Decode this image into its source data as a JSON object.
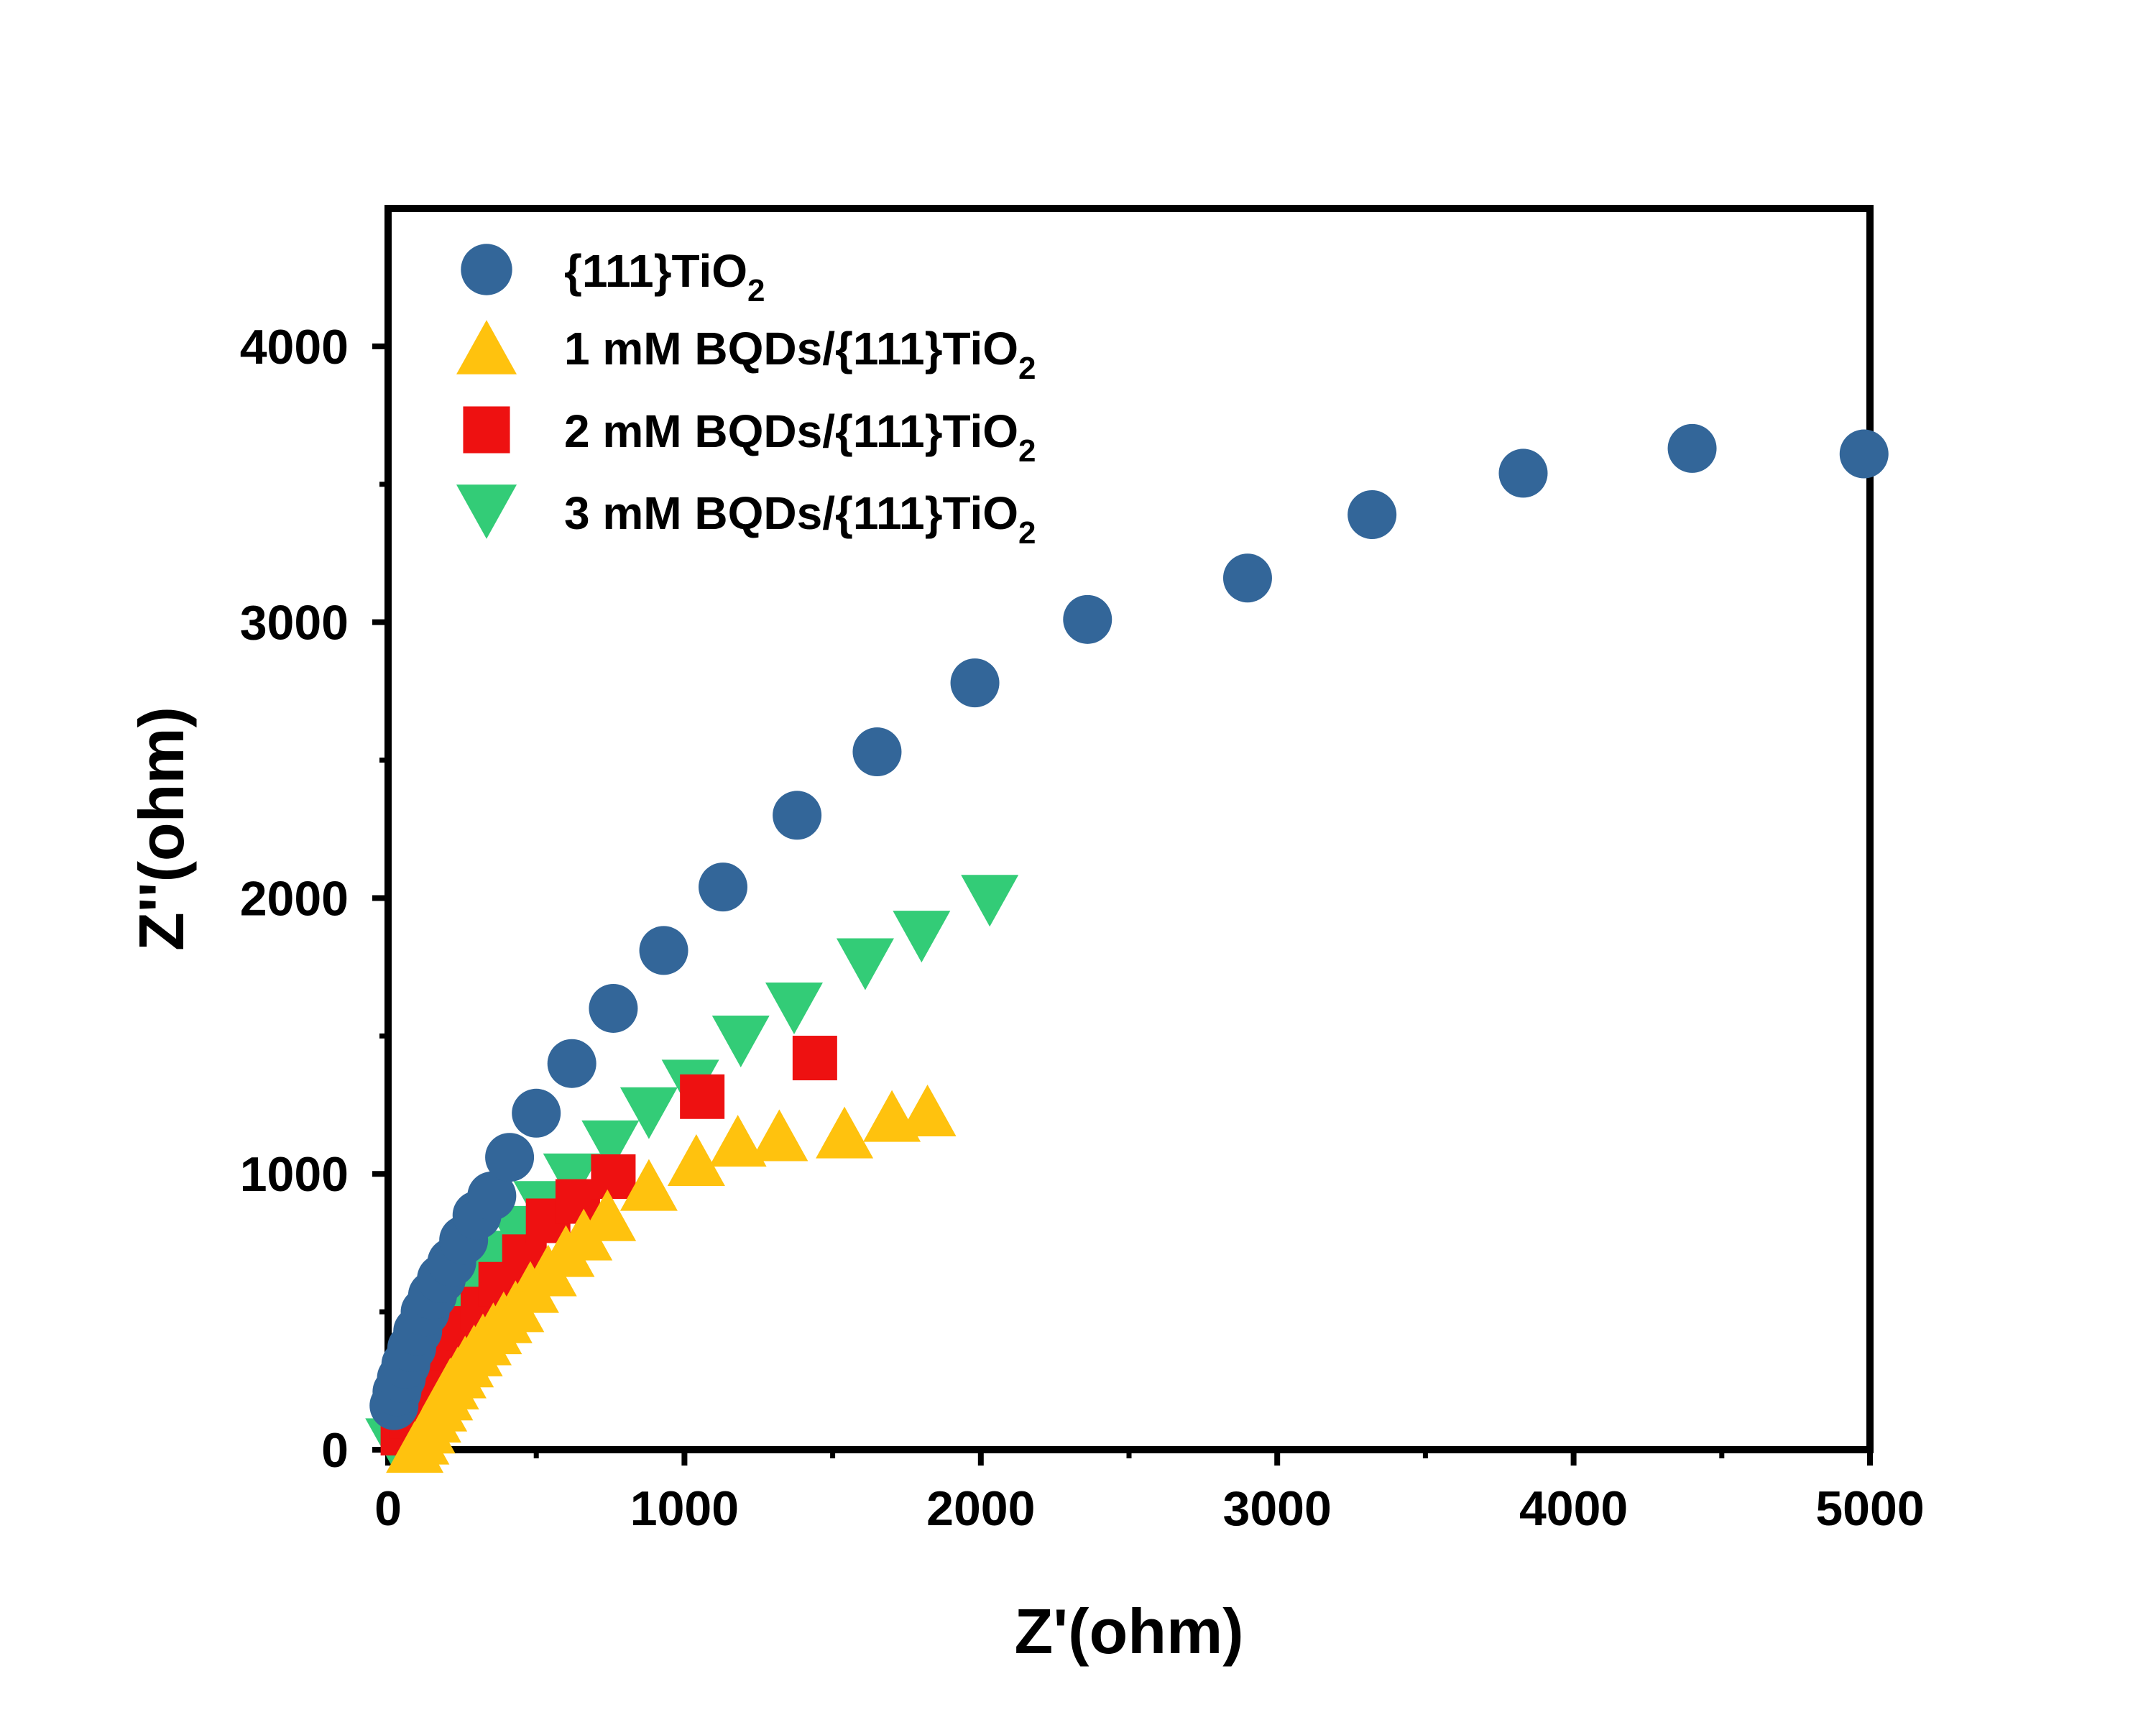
{
  "chart_data": {
    "type": "scatter",
    "title": "",
    "xlabel": "Z'(ohm)",
    "ylabel": "Z''(ohm)",
    "xlim": [
      0,
      5000
    ],
    "ylim": [
      0,
      4500
    ],
    "x_ticks": [
      0,
      1000,
      2000,
      3000,
      4000,
      5000
    ],
    "y_ticks": [
      0,
      1000,
      2000,
      3000,
      4000
    ],
    "legend_position": "top-left",
    "grid": false,
    "series": [
      {
        "name": "{111}TiO2",
        "label_main": "{111}TiO",
        "label_sub": "2",
        "marker": "circle",
        "color": "#336699",
        "points": [
          [
            20,
            160
          ],
          [
            30,
            210
          ],
          [
            45,
            260
          ],
          [
            60,
            310
          ],
          [
            80,
            370
          ],
          [
            100,
            430
          ],
          [
            125,
            500
          ],
          [
            150,
            560
          ],
          [
            180,
            620
          ],
          [
            215,
            680
          ],
          [
            255,
            760
          ],
          [
            300,
            850
          ],
          [
            350,
            920
          ],
          [
            410,
            1060
          ],
          [
            500,
            1220
          ],
          [
            620,
            1400
          ],
          [
            760,
            1600
          ],
          [
            930,
            1810
          ],
          [
            1130,
            2040
          ],
          [
            1380,
            2300
          ],
          [
            1650,
            2530
          ],
          [
            1980,
            2780
          ],
          [
            2360,
            3010
          ],
          [
            2900,
            3160
          ],
          [
            3320,
            3390
          ],
          [
            3830,
            3540
          ],
          [
            4400,
            3630
          ],
          [
            4980,
            3610
          ]
        ]
      },
      {
        "name": "1 mM BQDs/{111}TiO2",
        "label_main": "1 mM BQDs/{111}TiO",
        "label_sub": "2",
        "marker": "triangle-up",
        "color": "#FFC20E",
        "points": [
          [
            90,
            10
          ],
          [
            110,
            40
          ],
          [
            130,
            80
          ],
          [
            150,
            120
          ],
          [
            170,
            160
          ],
          [
            190,
            200
          ],
          [
            210,
            240
          ],
          [
            235,
            280
          ],
          [
            260,
            320
          ],
          [
            290,
            360
          ],
          [
            320,
            400
          ],
          [
            355,
            440
          ],
          [
            390,
            480
          ],
          [
            430,
            520
          ],
          [
            480,
            590
          ],
          [
            540,
            650
          ],
          [
            600,
            720
          ],
          [
            660,
            780
          ],
          [
            740,
            850
          ],
          [
            880,
            960
          ],
          [
            1040,
            1050
          ],
          [
            1180,
            1120
          ],
          [
            1320,
            1140
          ],
          [
            1540,
            1150
          ],
          [
            1700,
            1210
          ],
          [
            1820,
            1230
          ]
        ]
      },
      {
        "name": "2 mM BQDs/{111}TiO2",
        "label_main": "2 mM BQDs/{111}TiO",
        "label_sub": "2",
        "marker": "square",
        "color": "#EE1111",
        "points": [
          [
            50,
            60
          ],
          [
            80,
            120
          ],
          [
            110,
            180
          ],
          [
            140,
            240
          ],
          [
            180,
            310
          ],
          [
            220,
            370
          ],
          [
            270,
            440
          ],
          [
            320,
            510
          ],
          [
            380,
            600
          ],
          [
            460,
            700
          ],
          [
            540,
            830
          ],
          [
            640,
            900
          ],
          [
            760,
            990
          ],
          [
            1060,
            1280
          ],
          [
            1440,
            1420
          ]
        ]
      },
      {
        "name": "3 mM BQDs/{111}TiO2",
        "label_main": "3 mM BQDs/{111}TiO",
        "label_sub": "2",
        "marker": "triangle-down",
        "color": "#33CC77",
        "points": [
          [
            20,
            20
          ],
          [
            35,
            60
          ],
          [
            50,
            100
          ],
          [
            70,
            150
          ],
          [
            90,
            200
          ],
          [
            115,
            260
          ],
          [
            140,
            320
          ],
          [
            170,
            390
          ],
          [
            205,
            460
          ],
          [
            250,
            540
          ],
          [
            300,
            620
          ],
          [
            360,
            700
          ],
          [
            430,
            790
          ],
          [
            520,
            880
          ],
          [
            620,
            980
          ],
          [
            750,
            1100
          ],
          [
            880,
            1220
          ],
          [
            1020,
            1320
          ],
          [
            1190,
            1480
          ],
          [
            1370,
            1600
          ],
          [
            1610,
            1760
          ],
          [
            1800,
            1860
          ],
          [
            2030,
            1990
          ]
        ]
      }
    ]
  }
}
